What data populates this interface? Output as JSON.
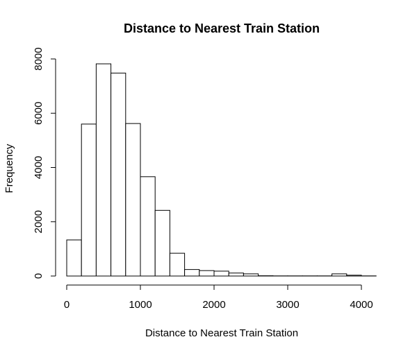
{
  "chart_data": {
    "type": "bar",
    "title": "Distance to Nearest Train Station",
    "xlabel": "Distance to Nearest Train Station",
    "ylabel": "Frequency",
    "xlim": [
      0,
      4200
    ],
    "ylim": [
      0,
      8000
    ],
    "x_ticks": [
      0,
      1000,
      2000,
      3000,
      4000
    ],
    "y_ticks": [
      0,
      2000,
      4000,
      6000,
      8000
    ],
    "bin_width": 200,
    "bins": [
      {
        "start": 0,
        "end": 200,
        "count": 1330
      },
      {
        "start": 200,
        "end": 400,
        "count": 5600
      },
      {
        "start": 400,
        "end": 600,
        "count": 7820
      },
      {
        "start": 600,
        "end": 800,
        "count": 7480
      },
      {
        "start": 800,
        "end": 1000,
        "count": 5620
      },
      {
        "start": 1000,
        "end": 1200,
        "count": 3660
      },
      {
        "start": 1200,
        "end": 1400,
        "count": 2420
      },
      {
        "start": 1400,
        "end": 1600,
        "count": 840
      },
      {
        "start": 1600,
        "end": 1800,
        "count": 240
      },
      {
        "start": 1800,
        "end": 2000,
        "count": 200
      },
      {
        "start": 2000,
        "end": 2200,
        "count": 180
      },
      {
        "start": 2200,
        "end": 2400,
        "count": 110
      },
      {
        "start": 2400,
        "end": 2600,
        "count": 80
      },
      {
        "start": 2600,
        "end": 2800,
        "count": 10
      },
      {
        "start": 2800,
        "end": 3000,
        "count": 5
      },
      {
        "start": 3000,
        "end": 3200,
        "count": 5
      },
      {
        "start": 3200,
        "end": 3400,
        "count": 5
      },
      {
        "start": 3400,
        "end": 3600,
        "count": 5
      },
      {
        "start": 3600,
        "end": 3800,
        "count": 80
      },
      {
        "start": 3800,
        "end": 4000,
        "count": 30
      },
      {
        "start": 4000,
        "end": 4200,
        "count": 5
      }
    ],
    "grid": false,
    "colors": {
      "bar_fill": "#ffffff",
      "bar_stroke": "#000000"
    }
  }
}
